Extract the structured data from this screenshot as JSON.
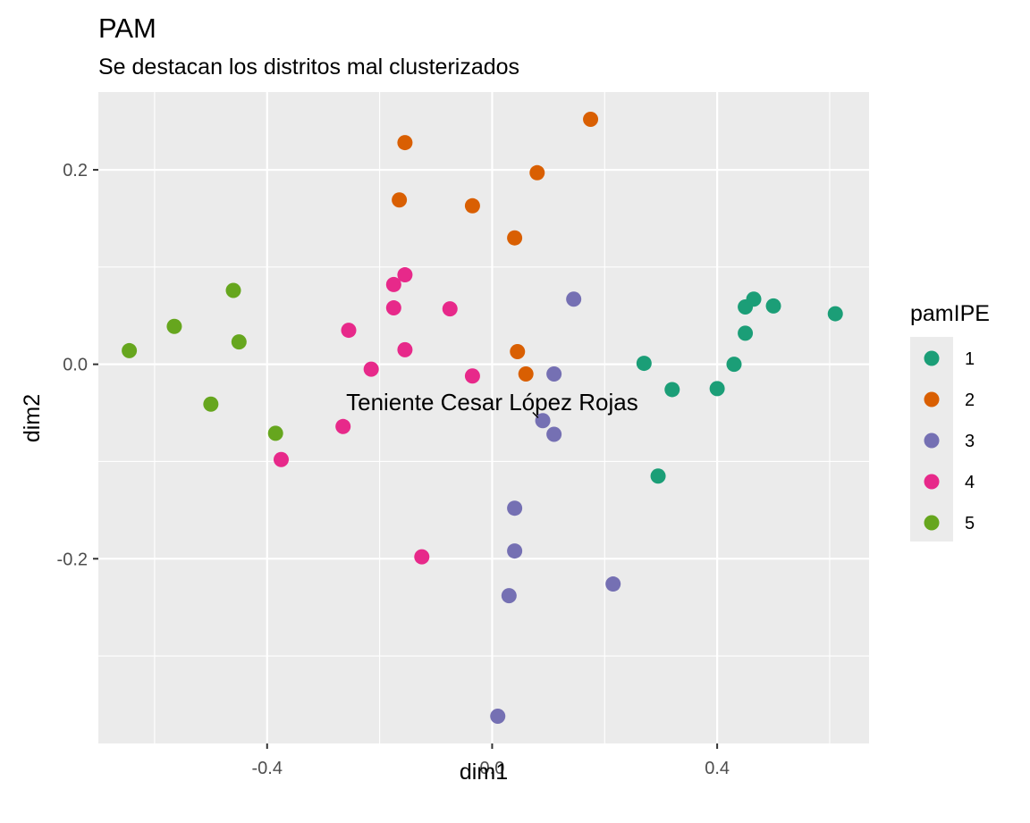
{
  "chart_data": {
    "type": "scatter",
    "title": "PAM",
    "subtitle": "Se destacan los distritos mal clusterizados",
    "xlabel": "dim1",
    "ylabel": "dim2",
    "xlim": [
      -0.7,
      0.67
    ],
    "ylim": [
      -0.39,
      0.28
    ],
    "x_ticks": [
      -0.4,
      0.0,
      0.4
    ],
    "x_tick_labels": [
      "-0.4",
      "0.0",
      "0.4"
    ],
    "y_ticks": [
      -0.2,
      0.0,
      0.2
    ],
    "y_tick_labels": [
      "-0.2",
      "0.0",
      "0.2"
    ],
    "grid": true,
    "background": "#ebebeb",
    "legend": {
      "title": "pamIPE",
      "position": "right",
      "entries": [
        "1",
        "2",
        "3",
        "4",
        "5"
      ]
    },
    "colors": {
      "1": "#1b9e77",
      "2": "#d95f02",
      "3": "#7570b3",
      "4": "#e7298a",
      "5": "#66a61e"
    },
    "series": [
      {
        "name": "1",
        "points": [
          {
            "x": 0.27,
            "y": 0.001
          },
          {
            "x": 0.32,
            "y": -0.026
          },
          {
            "x": 0.4,
            "y": -0.025
          },
          {
            "x": 0.43,
            "y": 0.0
          },
          {
            "x": 0.45,
            "y": 0.032
          },
          {
            "x": 0.45,
            "y": 0.059
          },
          {
            "x": 0.465,
            "y": 0.067
          },
          {
            "x": 0.5,
            "y": 0.06
          },
          {
            "x": 0.61,
            "y": 0.052
          },
          {
            "x": 0.295,
            "y": -0.115
          }
        ]
      },
      {
        "name": "2",
        "points": [
          {
            "x": -0.155,
            "y": 0.228
          },
          {
            "x": -0.165,
            "y": 0.169
          },
          {
            "x": -0.035,
            "y": 0.163
          },
          {
            "x": 0.04,
            "y": 0.13
          },
          {
            "x": 0.08,
            "y": 0.197
          },
          {
            "x": 0.175,
            "y": 0.252
          },
          {
            "x": 0.045,
            "y": 0.013
          },
          {
            "x": 0.06,
            "y": -0.01
          }
        ]
      },
      {
        "name": "3",
        "points": [
          {
            "x": 0.145,
            "y": 0.067
          },
          {
            "x": 0.11,
            "y": -0.01
          },
          {
            "x": 0.09,
            "y": -0.058
          },
          {
            "x": 0.11,
            "y": -0.072
          },
          {
            "x": 0.04,
            "y": -0.148
          },
          {
            "x": 0.04,
            "y": -0.192
          },
          {
            "x": 0.03,
            "y": -0.238
          },
          {
            "x": 0.215,
            "y": -0.226
          },
          {
            "x": 0.01,
            "y": -0.362
          }
        ]
      },
      {
        "name": "4",
        "points": [
          {
            "x": -0.155,
            "y": 0.092
          },
          {
            "x": -0.175,
            "y": 0.082
          },
          {
            "x": -0.175,
            "y": 0.058
          },
          {
            "x": -0.075,
            "y": 0.057
          },
          {
            "x": -0.255,
            "y": 0.035
          },
          {
            "x": -0.155,
            "y": 0.015
          },
          {
            "x": -0.215,
            "y": -0.005
          },
          {
            "x": -0.035,
            "y": -0.012
          },
          {
            "x": -0.265,
            "y": -0.064
          },
          {
            "x": -0.375,
            "y": -0.098
          },
          {
            "x": -0.125,
            "y": -0.198
          }
        ]
      },
      {
        "name": "5",
        "points": [
          {
            "x": -0.46,
            "y": 0.076
          },
          {
            "x": -0.565,
            "y": 0.039
          },
          {
            "x": -0.45,
            "y": 0.023
          },
          {
            "x": -0.645,
            "y": 0.014
          },
          {
            "x": -0.5,
            "y": -0.041
          },
          {
            "x": -0.385,
            "y": -0.071
          }
        ]
      }
    ],
    "annotations": [
      {
        "text": "Teniente Cesar López Rojas",
        "x": 0.0,
        "y": -0.039,
        "point_x": 0.085,
        "point_y": -0.055
      }
    ]
  }
}
